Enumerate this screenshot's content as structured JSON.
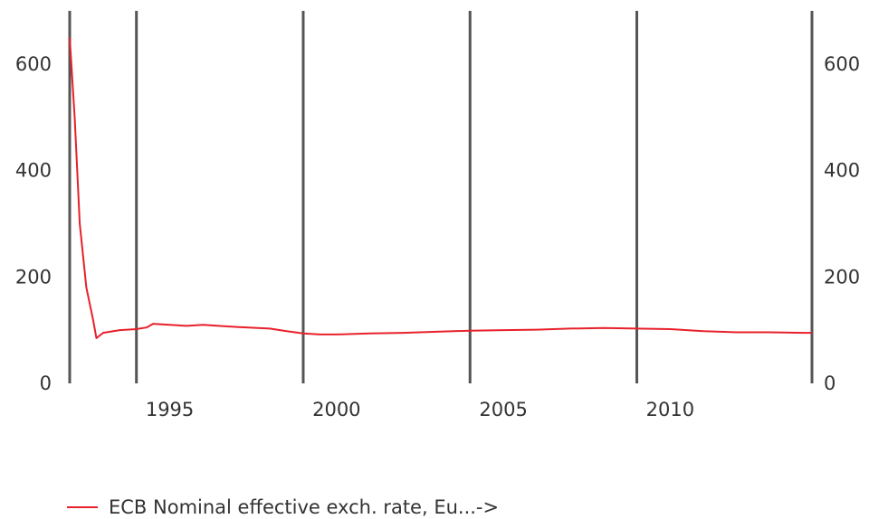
{
  "chart_data": {
    "type": "line",
    "title": "",
    "xlabel": "",
    "ylabel": "",
    "xlim": [
      1992.0,
      2014.25
    ],
    "ylim": [
      0,
      700
    ],
    "y_ticks": [
      0,
      200,
      400,
      600
    ],
    "y_tick_labels": [
      "0",
      "200",
      "400",
      "600"
    ],
    "y_axis_sides": [
      "left",
      "right"
    ],
    "x_ticks": [
      1995,
      2000,
      2005,
      2010
    ],
    "x_tick_labels": [
      "1995",
      "2000",
      "2005",
      "2010"
    ],
    "vertical_gridlines": [
      1994,
      1999,
      2004,
      2009
    ],
    "grid": true,
    "legend_position": "bottom-left",
    "series": [
      {
        "name": "ECB Nominal effective exch. rate, Eu...->",
        "color": "#e8202a",
        "x": [
          1992.0,
          1992.15,
          1992.3,
          1992.5,
          1992.7,
          1992.8,
          1993.0,
          1993.5,
          1994.0,
          1994.3,
          1994.5,
          1995.0,
          1995.5,
          1996.0,
          1997.0,
          1998.0,
          1998.5,
          1999.0,
          1999.5,
          2000.0,
          2001.0,
          2002.0,
          2003.0,
          2004.0,
          2005.0,
          2006.0,
          2007.0,
          2008.0,
          2009.0,
          2010.0,
          2011.0,
          2012.0,
          2013.0,
          2014.0,
          2014.25
        ],
        "values": [
          650,
          500,
          300,
          180,
          120,
          85,
          95,
          100,
          102,
          105,
          112,
          110,
          108,
          110,
          106,
          103,
          98,
          94,
          92,
          92,
          94,
          95,
          97,
          99,
          100,
          101,
          103,
          104,
          103,
          102,
          98,
          96,
          96,
          95,
          95
        ]
      }
    ]
  }
}
